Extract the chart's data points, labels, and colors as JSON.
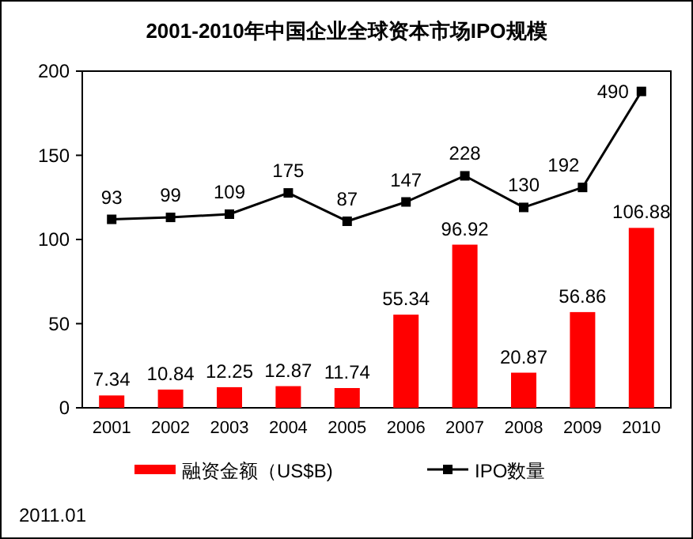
{
  "chart_data": {
    "type": "bar",
    "title": "2001-2010年中国企业全球资本市场IPO规模",
    "categories": [
      "2001",
      "2002",
      "2003",
      "2004",
      "2005",
      "2006",
      "2007",
      "2008",
      "2009",
      "2010"
    ],
    "series": [
      {
        "name": "融资金额（US$B)",
        "color": "#ff0000",
        "values": [
          7.34,
          10.84,
          12.25,
          12.87,
          11.74,
          55.34,
          96.92,
          20.87,
          56.86,
          106.88
        ]
      },
      {
        "name": "IPO数量",
        "type": "line",
        "axis": "y2",
        "color": "#000000",
        "marker": "square",
        "values": [
          93,
          99,
          109,
          175,
          87,
          147,
          228,
          130,
          192,
          490
        ]
      }
    ],
    "ylim": [
      0,
      200
    ],
    "yticks": [
      0,
      50,
      100,
      150,
      200
    ],
    "y2lim": [
      -492,
      553
    ],
    "data_labels": true,
    "legend": "bottom",
    "grid": false,
    "annotations": [
      "2011.01"
    ]
  }
}
